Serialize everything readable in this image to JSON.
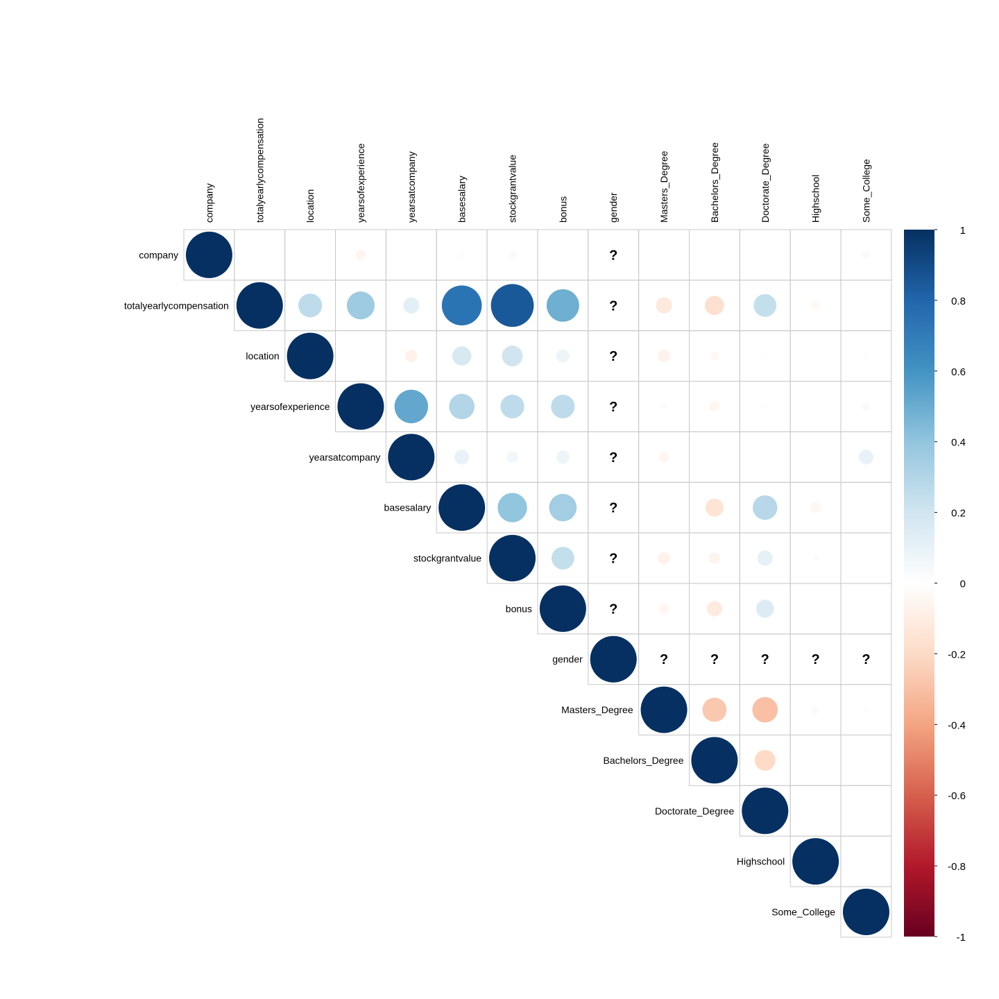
{
  "chart_data": {
    "type": "heatmap",
    "style": "correlation-circle-upper-triangle",
    "variables": [
      "company",
      "totalyearlycompensation",
      "location",
      "yearsofexperience",
      "yearsatcompany",
      "basesalary",
      "stockgrantvalue",
      "bonus",
      "gender",
      "Masters_Degree",
      "Bachelors_Degree",
      "Doctorate_Degree",
      "Highschool",
      "Some_College"
    ],
    "missing_label": "?",
    "matrix": [
      [
        1,
        0.0,
        0.01,
        -0.05,
        0.0,
        0.02,
        0.03,
        0.01,
        null,
        0.01,
        0.01,
        0.01,
        0.0,
        0.03
      ],
      [
        null,
        1,
        0.26,
        0.36,
        0.12,
        0.74,
        0.85,
        0.49,
        null,
        -0.12,
        -0.17,
        0.24,
        -0.04,
        0.0
      ],
      [
        null,
        null,
        1,
        0.01,
        -0.07,
        0.17,
        0.2,
        0.08,
        null,
        -0.07,
        -0.04,
        0.01,
        0.01,
        0.01
      ],
      [
        null,
        null,
        null,
        1,
        0.52,
        0.3,
        0.26,
        0.26,
        null,
        0.02,
        -0.05,
        0.01,
        0.0,
        0.03
      ],
      [
        null,
        null,
        null,
        null,
        1,
        0.1,
        0.06,
        0.08,
        null,
        -0.05,
        0.01,
        0.0,
        0.0,
        0.1
      ],
      [
        null,
        null,
        null,
        null,
        null,
        1,
        0.4,
        0.35,
        null,
        0.01,
        -0.15,
        0.28,
        -0.05,
        0.0
      ],
      [
        null,
        null,
        null,
        null,
        null,
        null,
        1,
        0.24,
        null,
        -0.07,
        -0.06,
        0.11,
        0.02,
        0.0
      ],
      [
        null,
        null,
        null,
        null,
        null,
        null,
        null,
        1,
        null,
        -0.05,
        -0.11,
        0.15,
        0.0,
        0.01
      ],
      [
        null,
        null,
        null,
        null,
        null,
        null,
        null,
        null,
        1,
        null,
        null,
        null,
        null,
        null
      ],
      [
        null,
        null,
        null,
        null,
        null,
        null,
        null,
        null,
        null,
        1,
        -0.27,
        -0.3,
        -0.03,
        0.01
      ],
      [
        null,
        null,
        null,
        null,
        null,
        null,
        null,
        null,
        null,
        null,
        1,
        -0.2,
        0.01,
        0.0
      ],
      [
        null,
        null,
        null,
        null,
        null,
        null,
        null,
        null,
        null,
        null,
        null,
        1,
        0.01,
        0.0
      ],
      [
        null,
        null,
        null,
        null,
        null,
        null,
        null,
        null,
        null,
        null,
        null,
        null,
        1,
        0.0
      ],
      [
        null,
        null,
        null,
        null,
        null,
        null,
        null,
        null,
        null,
        null,
        null,
        null,
        null,
        1
      ]
    ],
    "missing_cells": [
      [
        0,
        8
      ],
      [
        1,
        8
      ],
      [
        2,
        8
      ],
      [
        3,
        8
      ],
      [
        4,
        8
      ],
      [
        5,
        8
      ],
      [
        6,
        8
      ],
      [
        7,
        8
      ],
      [
        8,
        9
      ],
      [
        8,
        10
      ],
      [
        8,
        11
      ],
      [
        8,
        12
      ],
      [
        8,
        13
      ]
    ],
    "colorbar": {
      "range": [
        -1,
        1
      ],
      "ticks": [
        "1",
        "0.8",
        "0.6",
        "0.4",
        "0.2",
        "0",
        "-0.2",
        "-0.4",
        "-0.6",
        "-0.8",
        "-1"
      ],
      "colors": [
        "#67001F",
        "#B2182B",
        "#D6604D",
        "#F4A582",
        "#FDDBC7",
        "#FFFFFF",
        "#D1E5F0",
        "#92C5DE",
        "#4393C3",
        "#2166AC",
        "#053061"
      ]
    }
  }
}
